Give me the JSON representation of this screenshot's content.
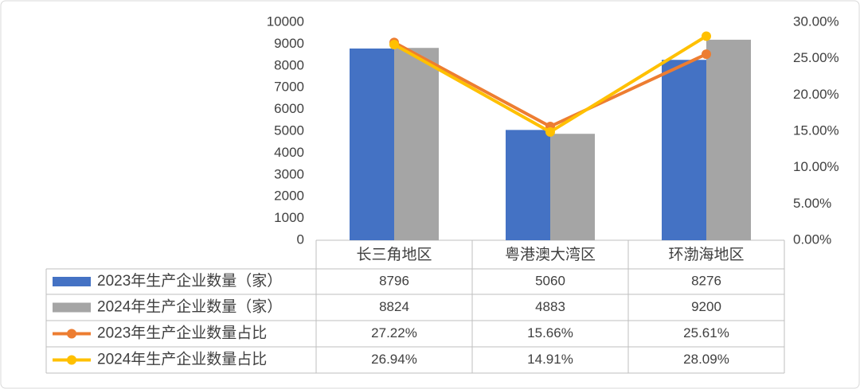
{
  "chart_data": {
    "type": "bar",
    "categories": [
      "长三角地区",
      "粤港澳大湾区",
      "环渤海地区"
    ],
    "series": [
      {
        "name": "2023年生产企业数量（家）",
        "type": "bar",
        "color": "#4472c4",
        "values": [
          8796,
          5060,
          8276
        ]
      },
      {
        "name": "2024年生产企业数量（家）",
        "type": "bar",
        "color": "#a5a5a5",
        "values": [
          8824,
          4883,
          9200
        ]
      },
      {
        "name": "2023年生产企业数量占比",
        "type": "line",
        "axis": "y2",
        "color": "#ed7d31",
        "values": [
          27.22,
          15.66,
          25.61
        ],
        "value_labels": [
          "27.22%",
          "15.66%",
          "25.61%"
        ]
      },
      {
        "name": "2024年生产企业数量占比",
        "type": "line",
        "axis": "y2",
        "color": "#ffc000",
        "values": [
          26.94,
          14.91,
          28.09
        ],
        "value_labels": [
          "26.94%",
          "14.91%",
          "28.09%"
        ]
      }
    ],
    "ylim": [
      0,
      10000
    ],
    "yticks": [
      0,
      1000,
      2000,
      3000,
      4000,
      5000,
      6000,
      7000,
      8000,
      9000,
      10000
    ],
    "y2lim": [
      0,
      30
    ],
    "y2ticks": [
      {
        "value": 0,
        "label": "0.00%"
      },
      {
        "value": 5,
        "label": "5.00%"
      },
      {
        "value": 10,
        "label": "10.00%"
      },
      {
        "value": 15,
        "label": "15.00%"
      },
      {
        "value": 20,
        "label": "20.00%"
      },
      {
        "value": 25,
        "label": "25.00%"
      },
      {
        "value": 30,
        "label": "30.00%"
      }
    ],
    "grid": false
  }
}
